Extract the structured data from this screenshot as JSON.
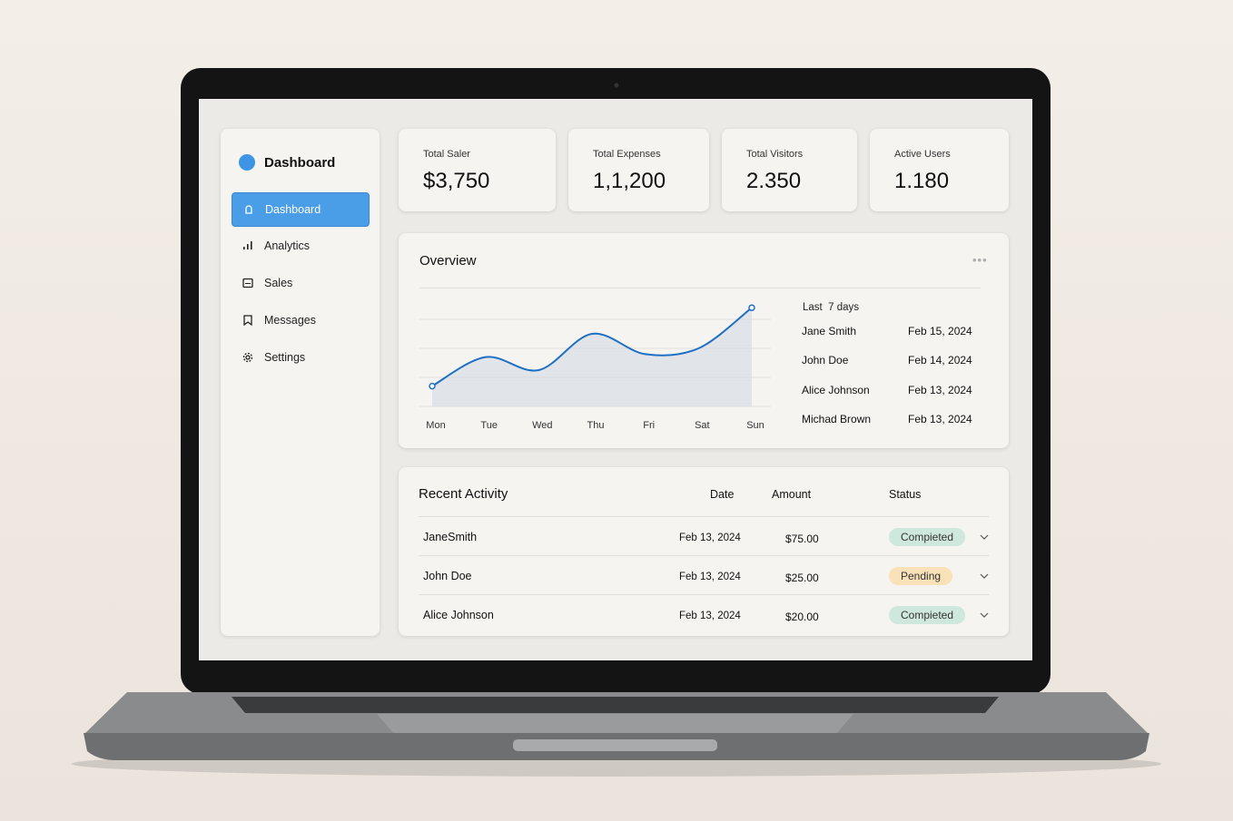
{
  "sidebar": {
    "title": "Dashboard",
    "nav": [
      "Dashboard",
      "Analytics",
      "Sales",
      "Messages",
      "Settings"
    ],
    "active": 0
  },
  "stats": [
    {
      "label": "Total Saler",
      "value": "$3,750"
    },
    {
      "label": "Total Expenses",
      "value": "1,1,200"
    },
    {
      "label": "Total Visitors",
      "value": "2.350"
    },
    {
      "label": "Active Users",
      "value": "1.180"
    }
  ],
  "overview": {
    "title": "Overview",
    "chart": {
      "type": "line",
      "categories": [
        "Mon",
        "Tue",
        "Wed",
        "Thu",
        "Fri",
        "Sat",
        "Sun"
      ],
      "values": [
        0.7,
        1.7,
        1.25,
        2.5,
        1.8,
        2.0,
        3.4
      ],
      "ylim": [
        0,
        4
      ],
      "color": "#1f6fc4"
    },
    "list_title": "Last  7 days",
    "list": [
      {
        "name": "Jane Smith",
        "date": "Feb 15, 2024"
      },
      {
        "name": "John Doe",
        "date": "Feb 14, 2024"
      },
      {
        "name": "Alice Johnson",
        "date": "Feb 13, 2024"
      },
      {
        "name": "Michad Brown",
        "date": "Feb 13, 2024"
      }
    ]
  },
  "activity": {
    "title": "Recent Activity",
    "columns": [
      "Date",
      "Amount",
      "Status"
    ],
    "rows": [
      {
        "name": "JaneSmith",
        "date": "Feb 13, 2024",
        "amount": "$75.00",
        "status": "Compieted",
        "color": "#cfe8dd"
      },
      {
        "name": "John Doe",
        "date": "Feb 13, 2024",
        "amount": "$25.00",
        "status": "Pending",
        "color": "#f9e1b8"
      },
      {
        "name": "Alice Johnson",
        "date": "Feb 13, 2024",
        "amount": "$20.00",
        "status": "Compieted",
        "color": "#cfe8dd"
      }
    ]
  }
}
